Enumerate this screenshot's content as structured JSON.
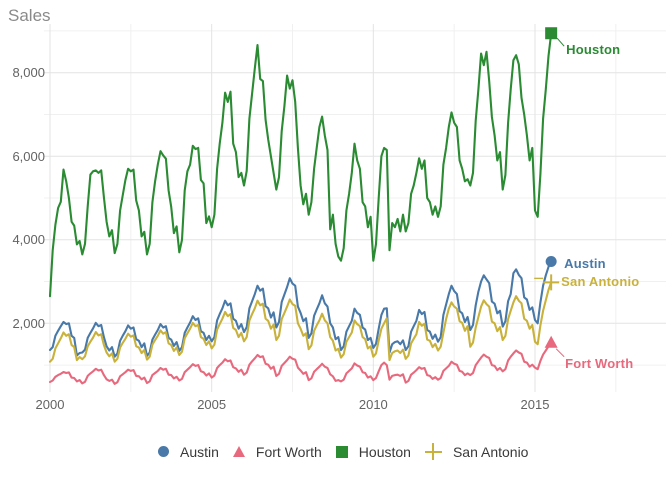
{
  "header": {
    "title": "Sales"
  },
  "style": {
    "background": "#ffffff",
    "grid_major": "#e3e3e3",
    "grid_minor": "#f0f0f0",
    "tick_color": "#636363",
    "title_color": "#8a8a8a",
    "legend_text_color": "#3a3a3a"
  },
  "chart_data": {
    "type": "line",
    "title": "Sales",
    "xlabel": "",
    "ylabel": "Sales",
    "frequency": "monthly",
    "start": "2000-01",
    "end": "2015-07",
    "grid": true,
    "legend_position": "bottom",
    "axes": {
      "x_ticks": [
        {
          "value": 2000,
          "label": "2000"
        },
        {
          "value": 2005,
          "label": "2005"
        },
        {
          "value": 2010,
          "label": "2010"
        },
        {
          "value": 2015,
          "label": "2015"
        }
      ],
      "x_minor": [
        2002.5,
        2007.5,
        2012.5,
        2017.5
      ],
      "y_ticks": [
        {
          "value": 2000,
          "label": "2,000"
        },
        {
          "value": 4000,
          "label": "4,000"
        },
        {
          "value": 6000,
          "label": "6,000"
        },
        {
          "value": 8000,
          "label": "8,000"
        }
      ],
      "y_minor": [
        1000,
        3000,
        5000,
        7000,
        9000
      ],
      "y_range": [
        300,
        9100
      ],
      "x_range": [
        2000,
        2015.58
      ]
    },
    "series": [
      {
        "id": "austin",
        "name": "Austin",
        "color": "#4879a8",
        "marker": "circle",
        "values": [
          1360,
          1430,
          1700,
          1820,
          1930,
          2030,
          1980,
          2000,
          1700,
          1650,
          1230,
          1290,
          1300,
          1370,
          1650,
          1770,
          1880,
          2010,
          1930,
          1960,
          1670,
          1450,
          1350,
          1430,
          1200,
          1280,
          1580,
          1700,
          1810,
          1950,
          1870,
          1900,
          1620,
          1580,
          1430,
          1520,
          1220,
          1300,
          1610,
          1730,
          1840,
          1980,
          1900,
          1930,
          1650,
          1610,
          1460,
          1550,
          1340,
          1430,
          1770,
          1900,
          2020,
          2170,
          2080,
          2120,
          1810,
          1770,
          1600,
          1700,
          1570,
          1670,
          2070,
          2220,
          2360,
          2540,
          2430,
          2480,
          2110,
          2060,
          1870,
          1980,
          1790,
          1910,
          2360,
          2530,
          2700,
          2900,
          2780,
          2830,
          2410,
          2360,
          2140,
          2260,
          1900,
          2030,
          2510,
          2690,
          2870,
          3080,
          2950,
          2900,
          2400,
          2250,
          2050,
          2120,
          1650,
          1760,
          2180,
          2330,
          2480,
          2670,
          2480,
          2400,
          2000,
          1900,
          1620,
          1670,
          1360,
          1450,
          1800,
          1930,
          2060,
          2350,
          2250,
          2200,
          1900,
          1850,
          1600,
          1650,
          1410,
          1510,
          1870,
          2200,
          2350,
          2360,
          1300,
          1500,
          1550,
          1570,
          1500,
          1590,
          1360,
          1450,
          1800,
          1930,
          2060,
          2320,
          2220,
          2270,
          1840,
          1800,
          1630,
          1730,
          1560,
          1670,
          2200,
          2450,
          2700,
          2900,
          2770,
          2700,
          2290,
          2240,
          2030,
          2150,
          1840,
          1960,
          2430,
          2760,
          3000,
          3150,
          3050,
          2960,
          2520,
          2470,
          2240,
          2300,
          1920,
          2050,
          2530,
          2700,
          3200,
          3290,
          3160,
          3080,
          2620,
          2570,
          2320,
          2380,
          2080,
          2000,
          2500,
          2900,
          3150,
          3350,
          3480
        ]
      },
      {
        "id": "fort-worth",
        "name": "Fort Worth",
        "color": "#e8697d",
        "marker": "triangle",
        "values": [
          595,
          630,
          720,
          760,
          790,
          835,
          810,
          825,
          700,
          690,
          610,
          640,
          560,
          600,
          740,
          800,
          850,
          910,
          870,
          890,
          760,
          660,
          620,
          650,
          550,
          590,
          730,
          780,
          830,
          890,
          860,
          880,
          740,
          730,
          660,
          700,
          570,
          610,
          760,
          810,
          860,
          930,
          890,
          910,
          770,
          760,
          680,
          720,
          630,
          670,
          830,
          890,
          950,
          1020,
          980,
          1000,
          850,
          830,
          750,
          800,
          700,
          750,
          930,
          1000,
          1060,
          1140,
          1090,
          1110,
          950,
          920,
          840,
          890,
          770,
          820,
          1010,
          1090,
          1160,
          1240,
          1190,
          1210,
          1030,
          1010,
          910,
          960,
          740,
          790,
          980,
          1050,
          1120,
          1200,
          1150,
          1130,
          940,
          870,
          790,
          830,
          640,
          680,
          840,
          900,
          960,
          1030,
          960,
          930,
          780,
          730,
          620,
          640,
          610,
          650,
          800,
          860,
          920,
          1040,
          990,
          960,
          830,
          810,
          700,
          730,
          640,
          690,
          850,
          1000,
          1060,
          1000,
          650,
          740,
          760,
          770,
          740,
          780,
          580,
          620,
          770,
          820,
          880,
          950,
          910,
          930,
          760,
          740,
          670,
          710,
          650,
          690,
          860,
          920,
          980,
          1080,
          1030,
          1010,
          860,
          840,
          760,
          800,
          760,
          810,
          1000,
          1090,
          1180,
          1250,
          1200,
          1170,
          1000,
          980,
          880,
          930,
          850,
          900,
          1110,
          1200,
          1280,
          1350,
          1300,
          1270,
          1080,
          1060,
          960,
          1010,
          940,
          900,
          1100,
          1250,
          1350,
          1450,
          1535
        ]
      },
      {
        "id": "houston",
        "name": "Houston",
        "color": "#2a8b33",
        "marker": "square",
        "values": [
          2650,
          3750,
          4360,
          4760,
          4910,
          5680,
          5400,
          5000,
          4430,
          4340,
          3890,
          3970,
          3650,
          3900,
          4800,
          5560,
          5640,
          5660,
          5600,
          5660,
          5020,
          4430,
          4080,
          4230,
          3680,
          3900,
          4700,
          5060,
          5430,
          5700,
          5640,
          5680,
          4940,
          4700,
          4080,
          4190,
          3650,
          3900,
          4900,
          5400,
          5800,
          6120,
          6020,
          5940,
          5180,
          4790,
          4160,
          4320,
          3700,
          4000,
          5180,
          5640,
          5800,
          6250,
          6170,
          6200,
          5430,
          5350,
          4400,
          4560,
          4300,
          4600,
          5700,
          6300,
          6800,
          7520,
          7300,
          7545,
          6300,
          6100,
          5500,
          5600,
          5300,
          5650,
          6900,
          7500,
          8100,
          8660,
          7850,
          7800,
          6870,
          6400,
          6000,
          5600,
          5200,
          5500,
          6600,
          7200,
          7930,
          7620,
          7820,
          7300,
          6200,
          5300,
          4850,
          5100,
          4600,
          4900,
          5700,
          6200,
          6700,
          6950,
          6500,
          6150,
          4250,
          4600,
          3900,
          3600,
          3500,
          3800,
          4700,
          5100,
          5600,
          6300,
          5900,
          5700,
          4900,
          4800,
          4300,
          4550,
          3500,
          3900,
          5000,
          6000,
          6200,
          6150,
          3750,
          4400,
          4300,
          4500,
          4200,
          4600,
          4200,
          4400,
          5100,
          5300,
          5600,
          5950,
          5700,
          5900,
          5000,
          4900,
          4600,
          4800,
          4550,
          4800,
          5800,
          6200,
          6700,
          7050,
          6800,
          6700,
          5900,
          5700,
          5400,
          5450,
          5300,
          5600,
          6850,
          7600,
          8460,
          8180,
          8500,
          7800,
          6940,
          6500,
          5900,
          6100,
          5200,
          5550,
          6800,
          7600,
          8300,
          8420,
          8200,
          7400,
          7000,
          6500,
          5900,
          6200,
          4700,
          4550,
          5570,
          6900,
          7600,
          8400,
          8945
        ]
      },
      {
        "id": "san-antonio",
        "name": "San Antonio",
        "color": "#c9b23c",
        "marker": "plus",
        "values": [
          1080,
          1150,
          1400,
          1520,
          1640,
          1780,
          1700,
          1740,
          1480,
          1430,
          1120,
          1190,
          1140,
          1210,
          1450,
          1560,
          1660,
          1790,
          1710,
          1740,
          1480,
          1300,
          1210,
          1280,
          1080,
          1150,
          1420,
          1530,
          1630,
          1750,
          1680,
          1710,
          1450,
          1420,
          1290,
          1360,
          1130,
          1200,
          1490,
          1600,
          1700,
          1830,
          1750,
          1790,
          1520,
          1480,
          1340,
          1420,
          1240,
          1320,
          1640,
          1760,
          1870,
          2010,
          1930,
          1960,
          1670,
          1630,
          1480,
          1570,
          1400,
          1490,
          1850,
          1980,
          2110,
          2270,
          2170,
          2220,
          1890,
          1840,
          1670,
          1770,
          1570,
          1670,
          2070,
          2220,
          2360,
          2540,
          2430,
          2470,
          2110,
          2060,
          1870,
          1970,
          1600,
          1700,
          2100,
          2250,
          2400,
          2570,
          2460,
          2420,
          2000,
          1870,
          1700,
          1760,
          1380,
          1470,
          1820,
          1950,
          2070,
          2230,
          2070,
          2000,
          1670,
          1580,
          1350,
          1390,
          1180,
          1260,
          1560,
          1670,
          1780,
          2070,
          1980,
          1930,
          1670,
          1620,
          1400,
          1450,
          1200,
          1280,
          1590,
          1870,
          2000,
          2120,
          1120,
          1290,
          1330,
          1350,
          1290,
          1370,
          1150,
          1230,
          1520,
          1630,
          1740,
          2030,
          1940,
          1990,
          1610,
          1580,
          1430,
          1510,
          1350,
          1440,
          1780,
          2100,
          2350,
          2500,
          2400,
          2350,
          2050,
          2010,
          1820,
          1930,
          1440,
          1540,
          1900,
          2150,
          2400,
          2550,
          2460,
          2400,
          2040,
          2000,
          1810,
          1910,
          1600,
          1700,
          2100,
          2300,
          2500,
          2650,
          2540,
          2480,
          2110,
          2060,
          1870,
          1960,
          1560,
          1500,
          1950,
          2300,
          2550,
          2800,
          2980
        ]
      }
    ]
  }
}
